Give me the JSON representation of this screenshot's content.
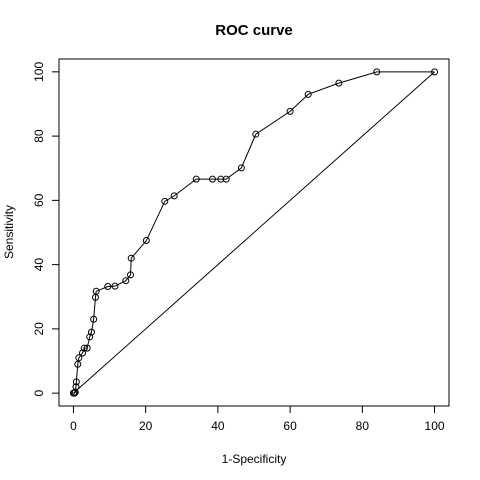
{
  "chart_data": {
    "type": "line",
    "title": "ROC curve",
    "xlabel": "1-Specificity",
    "ylabel": "Sensitivity",
    "xlim": [
      -4,
      104
    ],
    "ylim": [
      -4,
      104
    ],
    "xticks": [
      0,
      20,
      40,
      60,
      80,
      100
    ],
    "yticks": [
      0,
      20,
      40,
      60,
      80,
      100
    ],
    "grid": false,
    "series": [
      {
        "type": "line+points",
        "x": [
          0,
          0.3,
          0.5,
          0.7,
          0.8,
          1.2,
          1.5,
          2.5,
          3,
          3.8,
          4.5,
          5,
          5.6,
          6.1,
          6.3,
          9.5,
          11.5,
          14.5,
          15.8,
          16,
          20.2,
          25.3,
          27.9,
          34,
          38.5,
          40.8,
          42.3,
          46.5,
          50.5,
          60,
          65,
          73.5,
          84,
          100
        ],
        "y": [
          0,
          0,
          0.3,
          2,
          3.5,
          9,
          11,
          12.5,
          14,
          14,
          17.5,
          19,
          23,
          29.8,
          31.7,
          33.2,
          33.3,
          35,
          36.8,
          42,
          47.5,
          59.7,
          61.4,
          66.6,
          66.6,
          66.6,
          66.6,
          70.1,
          80.6,
          87.7,
          93,
          96.5,
          100,
          100
        ]
      },
      {
        "type": "diagonal",
        "x": [
          0,
          100
        ],
        "y": [
          0,
          100
        ]
      }
    ]
  }
}
